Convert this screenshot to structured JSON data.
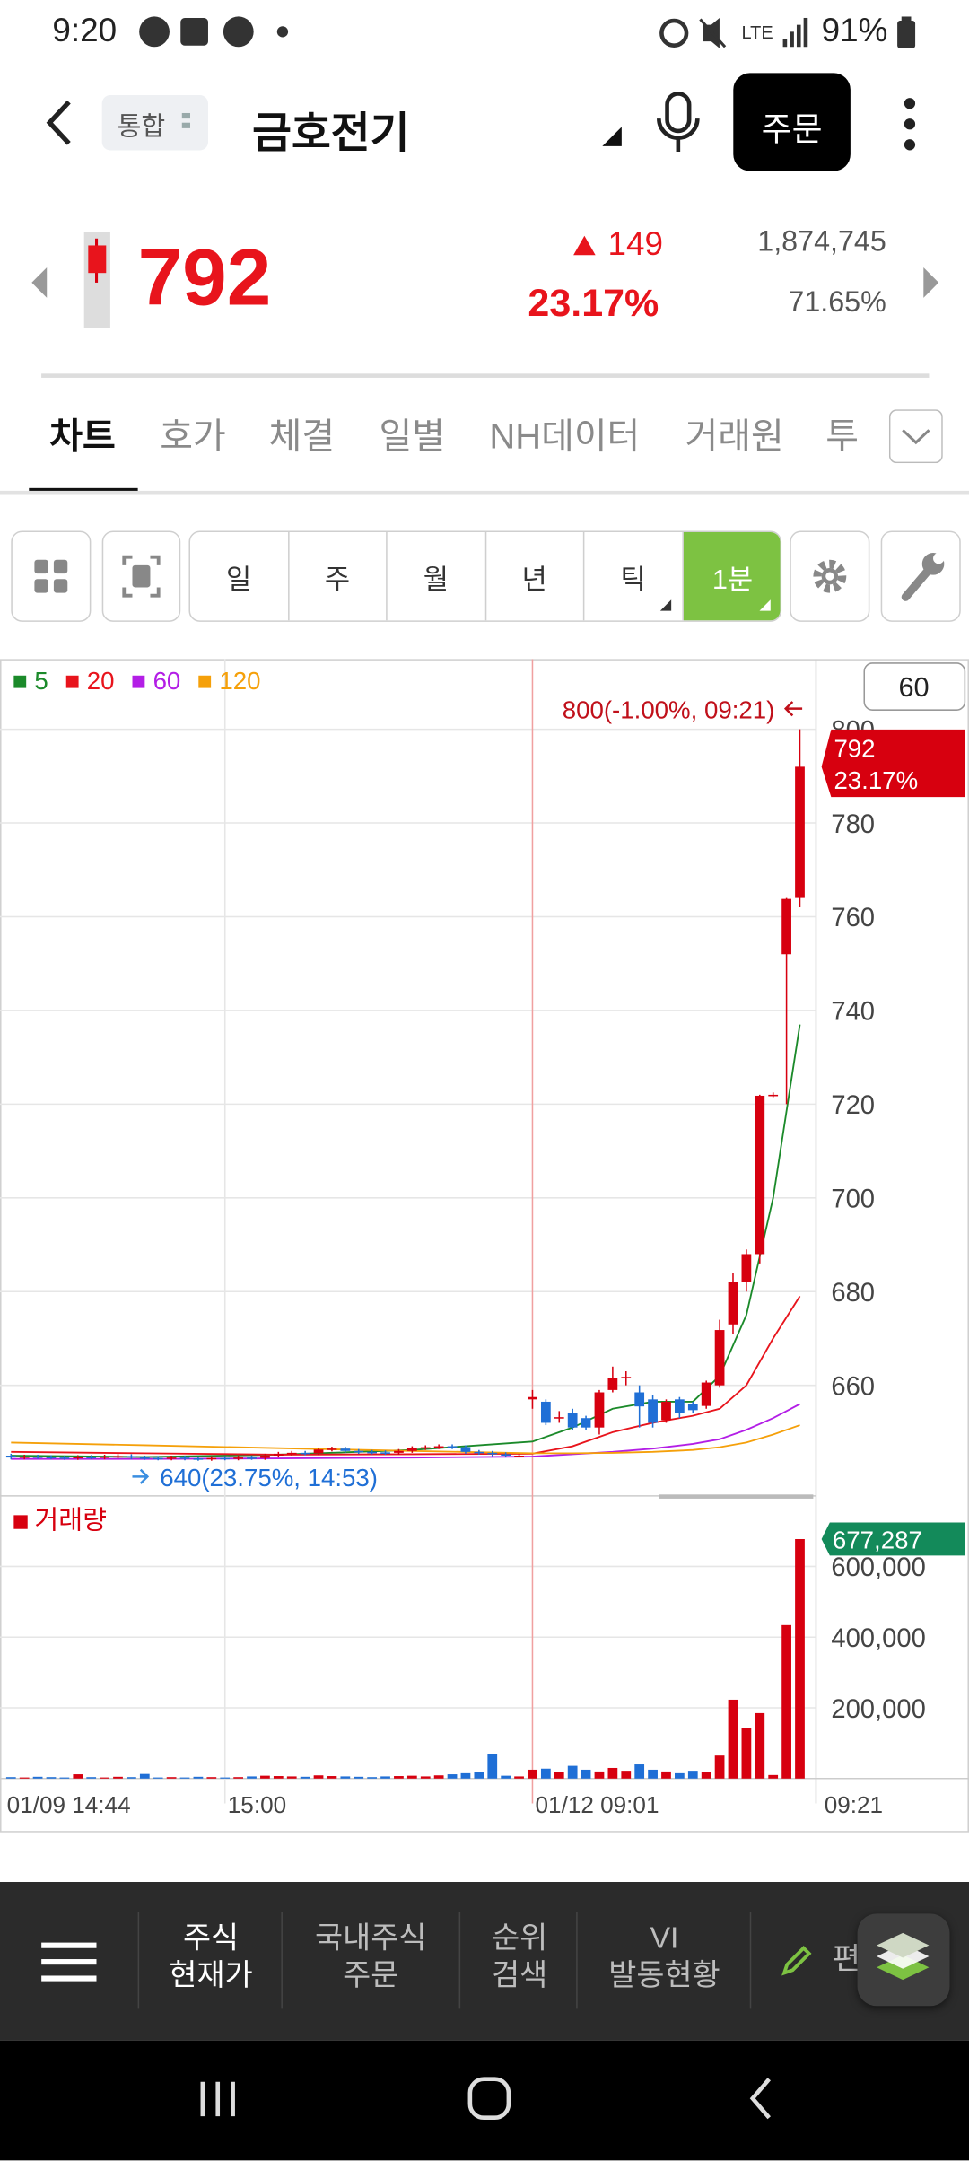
{
  "status_bar": {
    "time": "9:20",
    "battery": "91%"
  },
  "header": {
    "scope": "통합",
    "title": "금호전기",
    "order_button": "주문"
  },
  "quote": {
    "price": "792",
    "change": "149",
    "change_rate": "23.17%",
    "volume": "1,874,745",
    "turnover_rate": "71.65%"
  },
  "tabs": [
    "차트",
    "호가",
    "체결",
    "일별",
    "NH데이터",
    "거래원",
    "투자"
  ],
  "periods": [
    "일",
    "주",
    "월",
    "년",
    "틱",
    "1분"
  ],
  "chart_data": {
    "type": "candlestick",
    "period": "60",
    "grid": true,
    "categories": [
      "01/09 14:44",
      null,
      null,
      null,
      null,
      null,
      null,
      null,
      null,
      null,
      null,
      null,
      null,
      null,
      null,
      null,
      "15:00",
      null,
      null,
      null,
      null,
      null,
      null,
      null,
      null,
      null,
      null,
      null,
      null,
      null,
      null,
      null,
      null,
      null,
      null,
      null,
      null,
      null,
      null,
      "01/12 09:01",
      null,
      null,
      null,
      null,
      null,
      null,
      null,
      null,
      null,
      null,
      null,
      null,
      null,
      null,
      null,
      null,
      null,
      null,
      null,
      "09:21"
    ],
    "open": [
      645,
      644.6,
      644.8,
      644.7,
      644.6,
      644.5,
      644.7,
      644.6,
      644.8,
      644.9,
      644.6,
      644.5,
      644.4,
      644.6,
      644.4,
      644.3,
      644.5,
      644.4,
      644.6,
      644.5,
      645.0,
      645.4,
      645.6,
      645.5,
      646.3,
      646.5,
      646.0,
      645.8,
      645.7,
      645.6,
      646.0,
      646.6,
      646.8,
      647.0,
      646.8,
      645.8,
      645.6,
      645.3,
      645.0,
      657,
      656.5,
      653,
      654,
      653,
      651,
      659,
      661.5,
      658.5,
      657,
      652.6,
      657,
      656,
      655.6,
      660,
      673,
      682,
      688,
      722,
      752,
      764
    ],
    "high": [
      645.4,
      645.2,
      645.2,
      645.1,
      645.0,
      645.1,
      645.1,
      645.2,
      645.3,
      645.3,
      645.0,
      644.9,
      645.0,
      645.0,
      644.8,
      644.9,
      644.9,
      645.0,
      645.0,
      645.4,
      645.8,
      646.0,
      646.0,
      646.7,
      646.9,
      646.9,
      646.4,
      646.2,
      646.1,
      646.4,
      647.0,
      647.2,
      647.4,
      647.4,
      647.2,
      646.2,
      646.0,
      645.7,
      645.4,
      659,
      657,
      654.5,
      655,
      653.5,
      659,
      664,
      663,
      660,
      658,
      657,
      657.5,
      656.5,
      661,
      674,
      684,
      689,
      722,
      722.5,
      764,
      800
    ],
    "low": [
      644.2,
      644.2,
      644.3,
      644.2,
      644.1,
      644.1,
      644.2,
      644.2,
      644.4,
      644.2,
      644.1,
      644.0,
      644.0,
      644.0,
      643.9,
      643.9,
      644.0,
      644.0,
      644.1,
      644.1,
      644.6,
      645.0,
      645.1,
      645.1,
      645.9,
      645.6,
      645.4,
      645.3,
      645.2,
      645.2,
      645.6,
      646.2,
      646.4,
      646.4,
      645.4,
      645.2,
      644.9,
      644.6,
      644.6,
      655,
      651.5,
      652,
      650.5,
      650.5,
      649.5,
      658.5,
      660,
      651,
      651,
      652,
      653,
      654,
      655,
      659.5,
      671,
      680,
      686,
      721.5,
      720,
      762
    ],
    "close": [
      644.6,
      644.8,
      644.7,
      644.6,
      644.5,
      644.7,
      644.6,
      644.8,
      644.9,
      644.6,
      644.5,
      644.4,
      644.6,
      644.4,
      644.3,
      644.5,
      644.4,
      644.6,
      644.5,
      645.0,
      645.4,
      645.6,
      645.5,
      646.3,
      646.5,
      646.0,
      645.8,
      645.7,
      645.6,
      646.0,
      646.6,
      646.8,
      647.0,
      646.8,
      645.8,
      645.6,
      645.3,
      645.0,
      645.0,
      657.5,
      652,
      653.2,
      651,
      651,
      658.5,
      661.5,
      661.8,
      655.5,
      652,
      656.5,
      654,
      654.7,
      660.6,
      671.8,
      682,
      688,
      721.8,
      722,
      763.8,
      792
    ],
    "up_color": "#d7000f",
    "down_color": "#1f6fd6",
    "ylim": [
      637,
      814.4
    ],
    "yticks": [
      660,
      680,
      700,
      720,
      740,
      760,
      780,
      800
    ],
    "moving_averages": [
      {
        "name": "5",
        "color": "#1b8a2a",
        "x": [
          0,
          10,
          20,
          30,
          39,
          42,
          45,
          48,
          51,
          53,
          55,
          57,
          59
        ],
        "values": [
          645,
          644.7,
          645.2,
          646.2,
          648,
          651,
          655,
          656.5,
          656.5,
          662,
          675,
          700,
          737
        ]
      },
      {
        "name": "20",
        "color": "#e8141c",
        "x": [
          0,
          10,
          20,
          30,
          39,
          42,
          45,
          48,
          51,
          53,
          55,
          57,
          59
        ],
        "values": [
          645.8,
          645.5,
          645.2,
          645.3,
          645.4,
          647,
          650,
          652,
          653.5,
          655,
          660,
          670,
          679
        ]
      },
      {
        "name": "60",
        "color": "#b31ee6",
        "x": [
          0,
          10,
          20,
          30,
          39,
          42,
          45,
          48,
          51,
          53,
          55,
          57,
          59
        ],
        "values": [
          644.3,
          644.3,
          644.4,
          644.6,
          644.8,
          645.3,
          645.8,
          646.5,
          647.5,
          648.5,
          650.5,
          653,
          656
        ]
      },
      {
        "name": "120",
        "color": "#f5a00a",
        "x": [
          0,
          10,
          20,
          30,
          39,
          42,
          45,
          48,
          51,
          53,
          55,
          57,
          59
        ],
        "values": [
          647.8,
          647.2,
          646.6,
          646,
          645.5,
          645.5,
          645.6,
          645.8,
          646.2,
          646.8,
          647.8,
          649.5,
          651.5
        ]
      }
    ],
    "volume": {
      "name": "거래량",
      "color": "#d7000f",
      "ylim": [
        0,
        780000
      ],
      "yticks": [
        {
          "value": 200000,
          "label": "200,000"
        },
        {
          "value": 400000,
          "label": "400,000"
        },
        {
          "value": 600000,
          "label": "600,000"
        }
      ],
      "values": [
        4000,
        3000,
        5000,
        4000,
        3000,
        12000,
        4000,
        3000,
        5000,
        4000,
        13000,
        3000,
        4000,
        3000,
        5000,
        4000,
        3000,
        4000,
        6000,
        8000,
        7000,
        6000,
        5000,
        9000,
        7000,
        6000,
        5000,
        4000,
        6000,
        7000,
        8000,
        6000,
        9000,
        12000,
        15000,
        18000,
        69000,
        8000,
        6000,
        25000,
        28000,
        18000,
        36000,
        25000,
        20000,
        30000,
        22000,
        40000,
        25000,
        20000,
        15000,
        22000,
        18000,
        65000,
        223000,
        142000,
        185000,
        10000,
        434000,
        677287
      ]
    },
    "price_tag": {
      "value": 792,
      "label": "792",
      "change": "23.17%"
    },
    "volume_tag": {
      "value": 677287,
      "label": "677,287"
    },
    "annotations": [
      "800(-1.00%, 09:21)",
      "640(23.75%, 14:53)"
    ]
  },
  "bottom_nav": [
    [
      "주식",
      "현재가"
    ],
    [
      "국내주식",
      "주문"
    ],
    [
      "순위",
      "검색"
    ],
    [
      "VI",
      "발동현황"
    ],
    [
      "편집"
    ]
  ]
}
